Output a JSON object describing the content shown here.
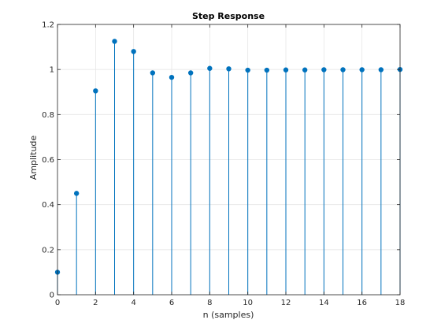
{
  "colors": {
    "background": "#ffffff",
    "axes_frame": "#262626",
    "grid": "#e6e6e6",
    "stem": "#0072bd"
  },
  "chart_data": {
    "type": "stem",
    "title": "Step Response",
    "xlabel": "n (samples)",
    "ylabel": "Amplitude",
    "xlim": [
      0,
      18
    ],
    "ylim": [
      0,
      1.2
    ],
    "xticks": [
      0,
      2,
      4,
      6,
      8,
      10,
      12,
      14,
      16,
      18
    ],
    "xtick_labels": [
      "0",
      "2",
      "4",
      "6",
      "8",
      "10",
      "12",
      "14",
      "16",
      "18"
    ],
    "yticks": [
      0,
      0.2,
      0.4,
      0.6,
      0.8,
      1,
      1.2
    ],
    "ytick_labels": [
      "0",
      "0.2",
      "0.4",
      "0.6",
      "0.8",
      "1",
      "1.2"
    ],
    "grid": true,
    "marker": "filled-circle",
    "x": [
      0,
      1,
      2,
      3,
      4,
      5,
      6,
      7,
      8,
      9,
      10,
      11,
      12,
      13,
      14,
      15,
      16,
      17,
      18
    ],
    "y": [
      0.1,
      0.45,
      0.905,
      1.125,
      1.08,
      0.985,
      0.965,
      0.985,
      1.005,
      1.003,
      0.997,
      0.997,
      0.998,
      0.998,
      0.999,
      0.999,
      0.999,
      0.999,
      1.0
    ]
  }
}
